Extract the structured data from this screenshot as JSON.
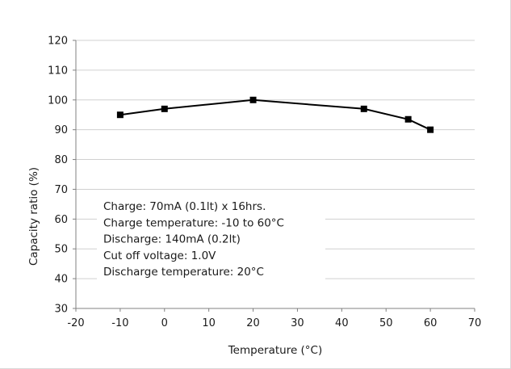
{
  "chart_data": {
    "type": "line",
    "xlabel": "Temperature (°C)",
    "ylabel": "Capacity ratio (%)",
    "xlim": [
      -20,
      70
    ],
    "ylim": [
      30,
      120
    ],
    "xticks": [
      -20,
      -10,
      0,
      10,
      20,
      30,
      40,
      50,
      60,
      70
    ],
    "yticks": [
      30,
      40,
      50,
      60,
      70,
      80,
      90,
      100,
      110,
      120
    ],
    "grid": "horizontal",
    "series": [
      {
        "x": [
          -10,
          0,
          20,
          45,
          55,
          60
        ],
        "y": [
          95,
          97,
          100,
          97,
          93.5,
          90
        ]
      }
    ],
    "annotation": [
      "Charge: 70mA (0.1lt) x 16hrs.",
      "Charge temperature: -10 to 60°C",
      "Discharge: 140mA (0.2lt)",
      "Cut off voltage: 1.0V",
      "Discharge temperature: 20°C"
    ],
    "colors": {
      "line": "#000000",
      "grid": "#d0d0d0",
      "axis": "#808080"
    }
  }
}
